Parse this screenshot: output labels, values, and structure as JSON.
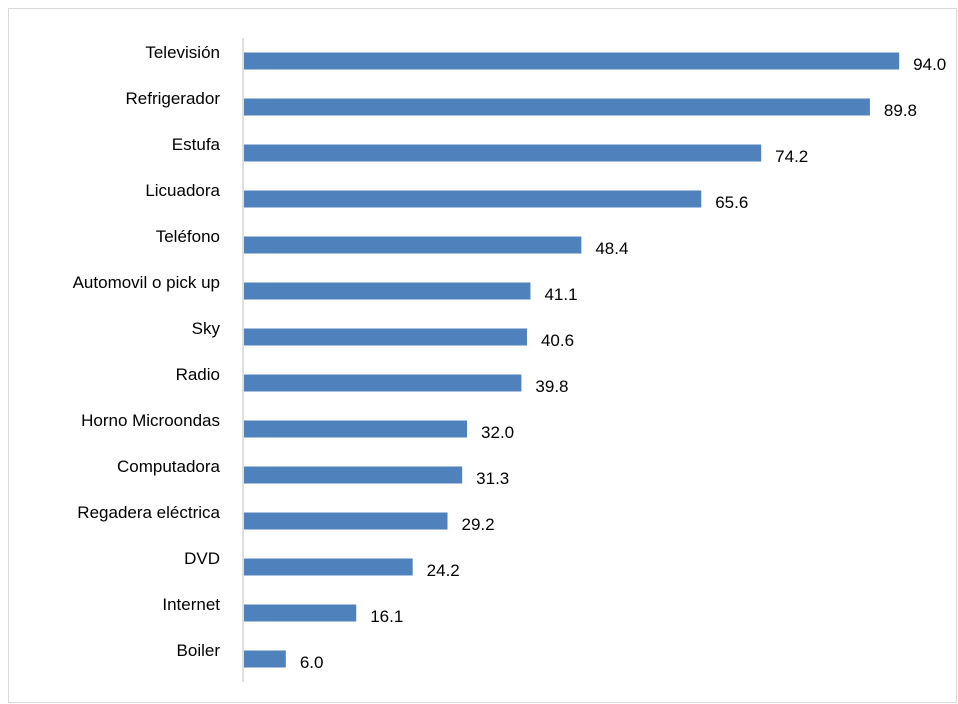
{
  "chart_data": {
    "type": "bar",
    "orientation": "horizontal",
    "title": "",
    "xlabel": "",
    "ylabel": "",
    "xlim": [
      0,
      100
    ],
    "grid": false,
    "legend": "none",
    "bar_color": "#4f81bd",
    "axis_color": "#bfbfbf",
    "categories": [
      "Televisión",
      "Refrigerador",
      "Estufa",
      "Licuadora",
      "Teléfono",
      "Automovil o pick up",
      "Sky",
      "Radio",
      "Horno Microondas",
      "Computadora",
      "Regadera eléctrica",
      "DVD",
      "Internet",
      "Boiler"
    ],
    "values": [
      94.0,
      89.8,
      74.2,
      65.6,
      48.4,
      41.1,
      40.6,
      39.8,
      32.0,
      31.3,
      29.2,
      24.2,
      16.1,
      6.0
    ],
    "value_labels": [
      "94.0",
      "89.8",
      "74.2",
      "65.6",
      "48.4",
      "41.1",
      "40.6",
      "39.8",
      "32.0",
      "31.3",
      "29.2",
      "24.2",
      "16.1",
      "6.0"
    ]
  }
}
